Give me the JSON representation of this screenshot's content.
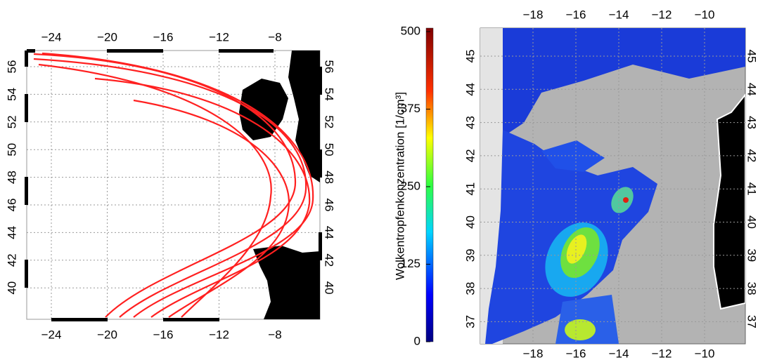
{
  "left_map": {
    "lon_labels": [
      "−24",
      "−20",
      "−16",
      "−12",
      "−8"
    ],
    "lat_labels": [
      "56",
      "54",
      "52",
      "50",
      "48",
      "46",
      "44",
      "42",
      "40"
    ]
  },
  "colorbar": {
    "label": "Wolkentropfenkonzentration [1/cm³]",
    "tick_labels": [
      "0",
      "125",
      "250",
      "375",
      "500"
    ]
  },
  "right_map": {
    "lon_labels": [
      "−18",
      "−16",
      "−14",
      "−12",
      "−10"
    ],
    "lat_labels": [
      "45",
      "44",
      "43",
      "42",
      "41",
      "40",
      "39",
      "38",
      "37"
    ]
  }
}
